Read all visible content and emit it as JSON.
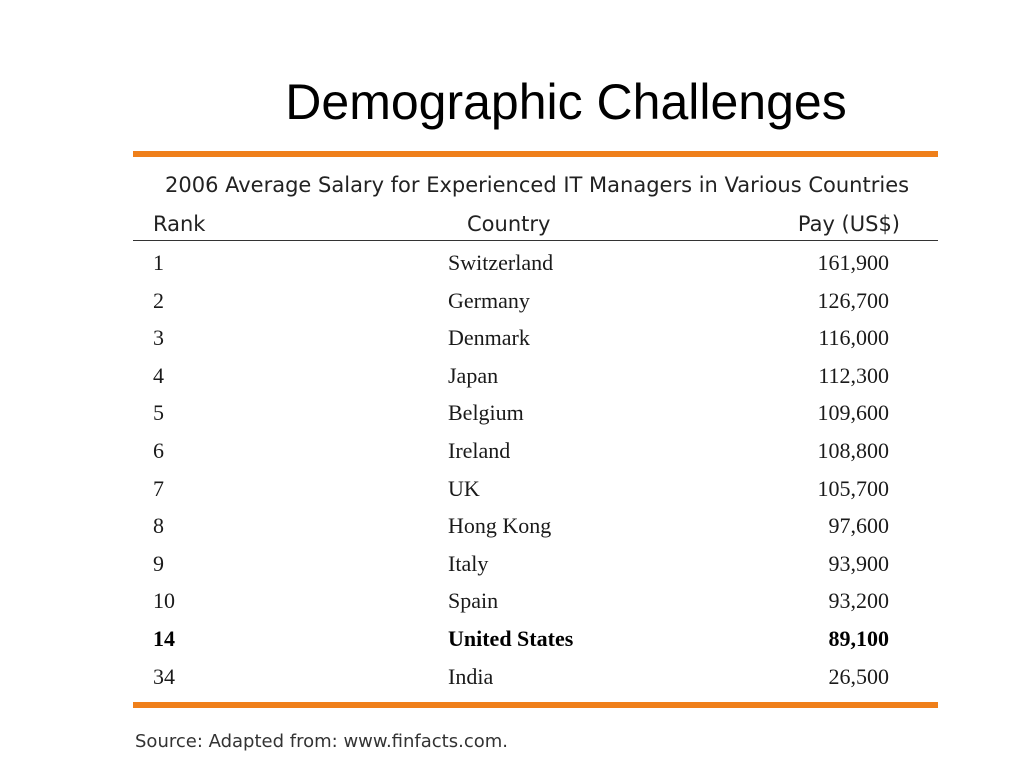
{
  "slide": {
    "title": "Demographic Challenges"
  },
  "table": {
    "caption": "2006 Average Salary for Experienced IT Managers in Various Countries",
    "headers": {
      "rank": "Rank",
      "country": "Country",
      "pay": "Pay (US$)"
    },
    "rows": [
      {
        "rank": "1",
        "country": "Switzerland",
        "pay": "161,900"
      },
      {
        "rank": "2",
        "country": "Germany",
        "pay": "126,700"
      },
      {
        "rank": "3",
        "country": "Denmark",
        "pay": "116,000"
      },
      {
        "rank": "4",
        "country": "Japan",
        "pay": "112,300"
      },
      {
        "rank": "5",
        "country": "Belgium",
        "pay": "109,600"
      },
      {
        "rank": "6",
        "country": "Ireland",
        "pay": "108,800"
      },
      {
        "rank": "7",
        "country": "UK",
        "pay": "105,700"
      },
      {
        "rank": "8",
        "country": "Hong Kong",
        "pay": "97,600"
      },
      {
        "rank": "9",
        "country": "Italy",
        "pay": "93,900"
      },
      {
        "rank": "10",
        "country": "Spain",
        "pay": "93,200"
      },
      {
        "rank": "14",
        "country": "United States",
        "pay": "89,100",
        "bold": true
      },
      {
        "rank": "34",
        "country": "India",
        "pay": "26,500"
      }
    ],
    "source": "Source: Adapted from: www.finfacts.com."
  },
  "colors": {
    "accent_rule": "#ef7f1a"
  }
}
